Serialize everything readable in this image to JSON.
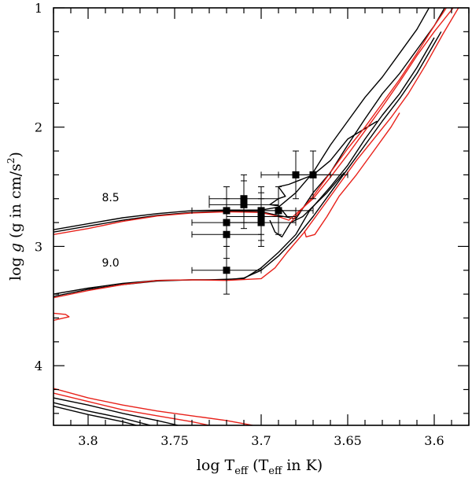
{
  "chart_data": {
    "type": "line",
    "xlabel": "log T_eff (T_eff in K)",
    "xlabel_parts": {
      "main": "log T",
      "sub1": "eff",
      "mid": " (T",
      "sub2": "eff",
      "end": " in K)"
    },
    "ylabel": "log g (g in cm/s^2)",
    "ylabel_parts": {
      "main": "log ",
      "g": "g",
      "mid": " (g in cm/s",
      "sup": "2",
      "end": ")"
    },
    "xlim": [
      3.82,
      3.58
    ],
    "ylim": [
      1.0,
      4.5
    ],
    "y_inverted": true,
    "xticks": [
      3.8,
      3.75,
      3.7,
      3.65,
      3.6
    ],
    "xtick_labels": [
      "3.8",
      "3.75",
      "3.7",
      "3.65",
      "3.6"
    ],
    "xminor_step": 0.01,
    "yticks": [
      1,
      2,
      3,
      4
    ],
    "ytick_labels": [
      "1",
      "2",
      "3",
      "4"
    ],
    "yminor_step": 0.2,
    "annotations": [
      {
        "text": "8.5",
        "x": 3.787,
        "y": 2.62
      },
      {
        "text": "9.0",
        "x": 3.787,
        "y": 3.17
      }
    ],
    "series": [
      {
        "name": "isochrone-8.5-black-lower",
        "color": "#000000",
        "points": [
          [
            3.82,
            2.88
          ],
          [
            3.8,
            2.83
          ],
          [
            3.78,
            2.78
          ],
          [
            3.76,
            2.74
          ],
          [
            3.74,
            2.715
          ],
          [
            3.72,
            2.705
          ],
          [
            3.7,
            2.71
          ],
          [
            3.69,
            2.74
          ],
          [
            3.68,
            2.77
          ],
          [
            3.67,
            2.55
          ],
          [
            3.66,
            2.38
          ],
          [
            3.65,
            2.15
          ],
          [
            3.64,
            1.93
          ],
          [
            3.63,
            1.72
          ],
          [
            3.62,
            1.55
          ],
          [
            3.61,
            1.35
          ],
          [
            3.6,
            1.15
          ],
          [
            3.594,
            1.0
          ]
        ]
      },
      {
        "name": "isochrone-8.5-black-upper",
        "color": "#000000",
        "points": [
          [
            3.82,
            2.86
          ],
          [
            3.8,
            2.81
          ],
          [
            3.78,
            2.76
          ],
          [
            3.76,
            2.725
          ],
          [
            3.74,
            2.7
          ],
          [
            3.72,
            2.695
          ],
          [
            3.7,
            2.695
          ],
          [
            3.69,
            2.67
          ],
          [
            3.68,
            2.55
          ],
          [
            3.67,
            2.38
          ],
          [
            3.66,
            2.15
          ],
          [
            3.65,
            1.95
          ],
          [
            3.64,
            1.75
          ],
          [
            3.63,
            1.58
          ],
          [
            3.62,
            1.38
          ],
          [
            3.61,
            1.18
          ],
          [
            3.603,
            1.0
          ]
        ]
      },
      {
        "name": "isochrone-8.5-black-loop",
        "color": "#000000",
        "points": [
          [
            3.685,
            2.75
          ],
          [
            3.69,
            2.66
          ],
          [
            3.695,
            2.65
          ],
          [
            3.69,
            2.6
          ],
          [
            3.686,
            2.58
          ],
          [
            3.69,
            2.5
          ],
          [
            3.684,
            2.48
          ],
          [
            3.67,
            2.4
          ],
          [
            3.66,
            2.28
          ],
          [
            3.65,
            2.1
          ],
          [
            3.633,
            1.95
          ]
        ]
      },
      {
        "name": "isochrone-8.5-black-vloop",
        "color": "#000000",
        "points": [
          [
            3.695,
            2.78
          ],
          [
            3.692,
            2.88
          ],
          [
            3.688,
            2.92
          ],
          [
            3.683,
            2.8
          ],
          [
            3.676,
            2.75
          ],
          [
            3.662,
            2.55
          ],
          [
            3.652,
            2.38
          ]
        ]
      },
      {
        "name": "isochrone-9.0-black-lower",
        "color": "#000000",
        "points": [
          [
            3.82,
            3.42
          ],
          [
            3.8,
            3.36
          ],
          [
            3.78,
            3.32
          ],
          [
            3.76,
            3.29
          ],
          [
            3.74,
            3.28
          ],
          [
            3.72,
            3.28
          ],
          [
            3.71,
            3.265
          ],
          [
            3.7,
            3.2
          ],
          [
            3.69,
            3.08
          ],
          [
            3.68,
            2.93
          ],
          [
            3.67,
            2.75
          ],
          [
            3.66,
            2.55
          ],
          [
            3.65,
            2.35
          ],
          [
            3.64,
            2.15
          ],
          [
            3.63,
            1.95
          ],
          [
            3.62,
            1.76
          ],
          [
            3.61,
            1.55
          ],
          [
            3.6,
            1.3
          ],
          [
            3.596,
            1.2
          ]
        ]
      },
      {
        "name": "isochrone-9.0-black-upper",
        "color": "#000000",
        "points": [
          [
            3.82,
            3.4
          ],
          [
            3.8,
            3.35
          ],
          [
            3.78,
            3.31
          ],
          [
            3.76,
            3.285
          ],
          [
            3.74,
            3.28
          ],
          [
            3.73,
            3.28
          ],
          [
            3.71,
            3.27
          ],
          [
            3.7,
            3.18
          ],
          [
            3.69,
            3.05
          ],
          [
            3.68,
            2.9
          ],
          [
            3.672,
            2.7
          ],
          [
            3.66,
            2.5
          ],
          [
            3.65,
            2.32
          ],
          [
            3.64,
            2.1
          ],
          [
            3.63,
            1.9
          ],
          [
            3.62,
            1.72
          ],
          [
            3.61,
            1.5
          ],
          [
            3.6,
            1.25
          ]
        ]
      },
      {
        "name": "isochrone-8.5-red",
        "color": "#e8211a",
        "points": [
          [
            3.82,
            2.9
          ],
          [
            3.8,
            2.85
          ],
          [
            3.78,
            2.79
          ],
          [
            3.76,
            2.745
          ],
          [
            3.74,
            2.72
          ],
          [
            3.72,
            2.71
          ],
          [
            3.7,
            2.715
          ],
          [
            3.69,
            2.75
          ],
          [
            3.684,
            2.78
          ],
          [
            3.67,
            2.6
          ],
          [
            3.66,
            2.42
          ],
          [
            3.65,
            2.23
          ],
          [
            3.64,
            2.03
          ],
          [
            3.63,
            1.83
          ],
          [
            3.62,
            1.62
          ],
          [
            3.61,
            1.4
          ],
          [
            3.6,
            1.2
          ],
          [
            3.589,
            1.0
          ]
        ]
      },
      {
        "name": "isochrone-8.5-red-loop",
        "color": "#e8211a",
        "points": [
          [
            3.683,
            2.8
          ],
          [
            3.67,
            2.58
          ],
          [
            3.66,
            2.38
          ],
          [
            3.65,
            2.18
          ],
          [
            3.64,
            2.0
          ],
          [
            3.63,
            1.8
          ],
          [
            3.62,
            1.6
          ],
          [
            3.61,
            1.38
          ],
          [
            3.6,
            1.15
          ],
          [
            3.593,
            1.0
          ]
        ]
      },
      {
        "name": "isochrone-9.0-red",
        "color": "#e8211a",
        "points": [
          [
            3.82,
            3.43
          ],
          [
            3.8,
            3.37
          ],
          [
            3.78,
            3.32
          ],
          [
            3.76,
            3.285
          ],
          [
            3.74,
            3.28
          ],
          [
            3.72,
            3.285
          ],
          [
            3.7,
            3.27
          ],
          [
            3.692,
            3.18
          ],
          [
            3.685,
            3.05
          ],
          [
            3.675,
            2.88
          ],
          [
            3.665,
            2.68
          ],
          [
            3.655,
            2.48
          ],
          [
            3.645,
            2.28
          ],
          [
            3.635,
            2.1
          ],
          [
            3.625,
            1.92
          ],
          [
            3.615,
            1.72
          ],
          [
            3.605,
            1.48
          ],
          [
            3.595,
            1.22
          ],
          [
            3.586,
            1.0
          ]
        ]
      },
      {
        "name": "isochrone-9.0-red-branch",
        "color": "#e8211a",
        "points": [
          [
            3.675,
            2.87
          ],
          [
            3.674,
            2.92
          ],
          [
            3.669,
            2.9
          ],
          [
            3.662,
            2.75
          ],
          [
            3.655,
            2.58
          ],
          [
            3.645,
            2.4
          ],
          [
            3.635,
            2.2
          ],
          [
            3.625,
            2.0
          ],
          [
            3.62,
            1.88
          ]
        ]
      },
      {
        "name": "red-hook",
        "color": "#e8211a",
        "points": [
          [
            3.82,
            3.62
          ],
          [
            3.811,
            3.59
          ],
          [
            3.813,
            3.57
          ],
          [
            3.82,
            3.56
          ]
        ]
      },
      {
        "name": "bottom-red-1",
        "color": "#e8211a",
        "points": [
          [
            3.82,
            4.19
          ],
          [
            3.8,
            4.27
          ],
          [
            3.78,
            4.33
          ],
          [
            3.76,
            4.38
          ],
          [
            3.74,
            4.42
          ],
          [
            3.72,
            4.46
          ],
          [
            3.705,
            4.5
          ]
        ]
      },
      {
        "name": "bottom-red-2",
        "color": "#e8211a",
        "points": [
          [
            3.82,
            4.23
          ],
          [
            3.8,
            4.3
          ],
          [
            3.78,
            4.37
          ],
          [
            3.76,
            4.42
          ],
          [
            3.74,
            4.47
          ],
          [
            3.73,
            4.5
          ]
        ]
      },
      {
        "name": "bottom-black-1",
        "color": "#000000",
        "points": [
          [
            3.82,
            4.27
          ],
          [
            3.8,
            4.33
          ],
          [
            3.78,
            4.4
          ],
          [
            3.76,
            4.46
          ],
          [
            3.748,
            4.5
          ]
        ]
      },
      {
        "name": "bottom-black-2",
        "color": "#000000",
        "points": [
          [
            3.82,
            4.31
          ],
          [
            3.8,
            4.38
          ],
          [
            3.78,
            4.44
          ],
          [
            3.764,
            4.5
          ]
        ]
      },
      {
        "name": "bottom-black-3",
        "color": "#000000",
        "points": [
          [
            3.82,
            4.34
          ],
          [
            3.8,
            4.41
          ],
          [
            3.78,
            4.47
          ],
          [
            3.772,
            4.5
          ]
        ]
      }
    ],
    "data_points": [
      {
        "x": 3.72,
        "y": 2.7,
        "xerr": 0.02,
        "yerr": 0.2
      },
      {
        "x": 3.72,
        "y": 2.8,
        "xerr": 0.02,
        "yerr": 0.2
      },
      {
        "x": 3.72,
        "y": 2.9,
        "xerr": 0.02,
        "yerr": 0.2
      },
      {
        "x": 3.72,
        "y": 3.2,
        "xerr": 0.02,
        "yerr": 0.2
      },
      {
        "x": 3.71,
        "y": 2.6,
        "xerr": 0.02,
        "yerr": 0.2
      },
      {
        "x": 3.71,
        "y": 2.65,
        "xerr": 0.02,
        "yerr": 0.2
      },
      {
        "x": 3.7,
        "y": 2.7,
        "xerr": 0.02,
        "yerr": 0.2
      },
      {
        "x": 3.7,
        "y": 2.75,
        "xerr": 0.02,
        "yerr": 0.2
      },
      {
        "x": 3.7,
        "y": 2.8,
        "xerr": 0.02,
        "yerr": 0.2
      },
      {
        "x": 3.69,
        "y": 2.7,
        "xerr": 0.02,
        "yerr": 0.2
      },
      {
        "x": 3.68,
        "y": 2.4,
        "xerr": 0.02,
        "yerr": 0.2
      },
      {
        "x": 3.67,
        "y": 2.4,
        "xerr": 0.02,
        "yerr": 0.2
      }
    ]
  }
}
